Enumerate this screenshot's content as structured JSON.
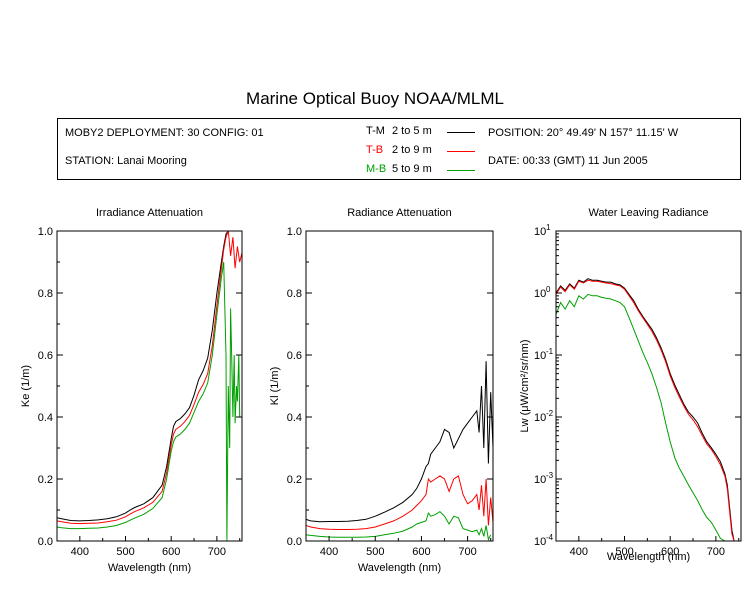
{
  "header": {
    "title": "Marine Optical Buoy NOAA/MLML",
    "deployment": "MOBY2 DEPLOYMENT: 30 CONFIG: 01",
    "station": "STATION: Lanai Mooring",
    "position": "POSITION: 20° 49.49' N   157° 11.15' W",
    "date": "DATE: 00:33 (GMT) 11 Jun 2005"
  },
  "legend": [
    {
      "code": "T-M",
      "range": "2 to 5  m",
      "color": "#000000"
    },
    {
      "code": "T-B",
      "range": "2 to 9  m",
      "color": "#ff0000"
    },
    {
      "code": "M-B",
      "range": "5 to 9  m",
      "color": "#00a000"
    }
  ],
  "chart_data": [
    {
      "type": "line",
      "title": "Irradiance Attenuation",
      "xlabel": "Wavelength (nm)",
      "ylabel": "Ke  (1/m)",
      "xlim": [
        350,
        755
      ],
      "ylim": [
        0,
        1.0
      ],
      "xticks": [
        400,
        500,
        600,
        700
      ],
      "yticks": [
        "0.0",
        "0.2",
        "0.4",
        "0.6",
        "0.8",
        "1.0"
      ],
      "grid": false,
      "series": [
        {
          "name": "T-M",
          "color": "#000000",
          "x": [
            350,
            360,
            380,
            400,
            420,
            440,
            460,
            480,
            500,
            510,
            520,
            540,
            560,
            580,
            590,
            600,
            605,
            610,
            620,
            630,
            640,
            650,
            660,
            670,
            680,
            690,
            700,
            710,
            715,
            720,
            725,
            730,
            735,
            740,
            745,
            750,
            755
          ],
          "y": [
            0.075,
            0.072,
            0.066,
            0.065,
            0.066,
            0.068,
            0.072,
            0.078,
            0.09,
            0.1,
            0.108,
            0.12,
            0.14,
            0.18,
            0.24,
            0.33,
            0.37,
            0.385,
            0.395,
            0.41,
            0.43,
            0.47,
            0.52,
            0.55,
            0.59,
            0.68,
            0.8,
            0.9,
            0.95,
            0.99,
            1.0,
            1.0,
            1.0,
            1.0,
            1.0,
            1.0,
            1.0
          ]
        },
        {
          "name": "T-B",
          "color": "#ff0000",
          "x": [
            350,
            360,
            380,
            400,
            420,
            440,
            460,
            480,
            500,
            510,
            520,
            540,
            560,
            580,
            590,
            600,
            605,
            610,
            620,
            630,
            640,
            650,
            660,
            670,
            680,
            690,
            700,
            710,
            715,
            720,
            725,
            730,
            735,
            740,
            745,
            750,
            755
          ],
          "y": [
            0.065,
            0.062,
            0.057,
            0.056,
            0.057,
            0.058,
            0.062,
            0.067,
            0.078,
            0.087,
            0.095,
            0.107,
            0.125,
            0.16,
            0.22,
            0.31,
            0.345,
            0.36,
            0.37,
            0.385,
            0.405,
            0.44,
            0.48,
            0.505,
            0.54,
            0.63,
            0.76,
            0.88,
            0.94,
            0.98,
            1.0,
            0.92,
            0.98,
            0.88,
            0.95,
            0.9,
            0.93
          ]
        },
        {
          "name": "M-B",
          "color": "#00a000",
          "x": [
            350,
            360,
            380,
            400,
            420,
            440,
            460,
            480,
            500,
            510,
            520,
            540,
            560,
            580,
            590,
            600,
            605,
            610,
            620,
            630,
            640,
            650,
            660,
            670,
            680,
            690,
            700,
            710,
            715,
            720,
            722,
            725,
            728,
            730,
            733,
            735,
            738,
            740,
            743,
            745,
            748,
            750
          ],
          "y": [
            0.045,
            0.043,
            0.04,
            0.04,
            0.041,
            0.042,
            0.045,
            0.05,
            0.06,
            0.067,
            0.074,
            0.086,
            0.105,
            0.14,
            0.2,
            0.29,
            0.32,
            0.335,
            0.345,
            0.36,
            0.38,
            0.415,
            0.45,
            0.475,
            0.51,
            0.6,
            0.73,
            0.85,
            0.9,
            0.6,
            0.0,
            0.5,
            0.3,
            0.75,
            0.55,
            0.4,
            0.6,
            0.38,
            0.5,
            0.45,
            0.6,
            0.4
          ]
        }
      ]
    },
    {
      "type": "line",
      "title": "Radiance Attenuation",
      "xlabel": "Wavelength (nm)",
      "ylabel": "Kl  (1/m)",
      "xlim": [
        350,
        755
      ],
      "ylim": [
        0,
        1.0
      ],
      "xticks": [
        400,
        500,
        600,
        700
      ],
      "yticks": [
        "0.0",
        "0.2",
        "0.4",
        "0.6",
        "0.8",
        "1.0"
      ],
      "grid": false,
      "series": [
        {
          "name": "T-M",
          "color": "#000000",
          "x": [
            350,
            360,
            380,
            400,
            420,
            440,
            460,
            480,
            500,
            520,
            540,
            560,
            580,
            590,
            600,
            605,
            610,
            615,
            620,
            630,
            640,
            650,
            660,
            670,
            680,
            690,
            700,
            710,
            720,
            725,
            730,
            735,
            740,
            745,
            750,
            755
          ],
          "y": [
            0.07,
            0.065,
            0.062,
            0.063,
            0.063,
            0.064,
            0.066,
            0.07,
            0.08,
            0.093,
            0.107,
            0.125,
            0.15,
            0.17,
            0.2,
            0.22,
            0.24,
            0.25,
            0.28,
            0.3,
            0.32,
            0.36,
            0.35,
            0.3,
            0.33,
            0.36,
            0.38,
            0.4,
            0.42,
            0.35,
            0.5,
            0.3,
            0.58,
            0.25,
            0.48,
            0.3
          ]
        },
        {
          "name": "T-B",
          "color": "#ff0000",
          "x": [
            350,
            360,
            380,
            400,
            420,
            440,
            460,
            480,
            500,
            520,
            540,
            560,
            580,
            590,
            600,
            610,
            615,
            620,
            630,
            640,
            650,
            660,
            670,
            680,
            690,
            700,
            710,
            720,
            725,
            730,
            735,
            740,
            745,
            750,
            755
          ],
          "y": [
            0.05,
            0.045,
            0.04,
            0.038,
            0.037,
            0.037,
            0.038,
            0.04,
            0.045,
            0.055,
            0.065,
            0.08,
            0.1,
            0.115,
            0.13,
            0.15,
            0.2,
            0.19,
            0.2,
            0.21,
            0.2,
            0.16,
            0.2,
            0.21,
            0.15,
            0.12,
            0.13,
            0.15,
            0.1,
            0.18,
            0.08,
            0.2,
            0.05,
            0.14,
            0.06
          ]
        },
        {
          "name": "M-B",
          "color": "#00a000",
          "x": [
            350,
            360,
            380,
            400,
            420,
            440,
            460,
            480,
            500,
            520,
            540,
            560,
            580,
            590,
            600,
            610,
            615,
            620,
            630,
            640,
            650,
            660,
            670,
            680,
            690,
            700,
            710,
            720,
            725,
            730,
            735,
            740,
            745,
            750
          ],
          "y": [
            0.02,
            0.018,
            0.015,
            0.013,
            0.012,
            0.012,
            0.012,
            0.013,
            0.015,
            0.02,
            0.025,
            0.032,
            0.045,
            0.055,
            0.06,
            0.065,
            0.09,
            0.08,
            0.085,
            0.095,
            0.08,
            0.055,
            0.08,
            0.075,
            0.04,
            0.035,
            0.03,
            0.035,
            0.02,
            0.04,
            0.015,
            0.05,
            0.005,
            0.02
          ]
        }
      ]
    },
    {
      "type": "line",
      "title": "Water Leaving Radiance",
      "xlabel": "Wavelength (nm)",
      "ylabel": "Lw  (μW/cm²/sr/nm)",
      "xscale": "log-y",
      "xlim": [
        350,
        755
      ],
      "ylim_log10": [
        -4,
        1
      ],
      "xticks": [
        400,
        500,
        600,
        700
      ],
      "yticks": [
        {
          "base": "10",
          "exp": "1"
        },
        {
          "base": "10",
          "exp": "0"
        },
        {
          "base": "10",
          "exp": "-1"
        },
        {
          "base": "10",
          "exp": "-2"
        },
        {
          "base": "10",
          "exp": "-3"
        },
        {
          "base": "10",
          "exp": "-4"
        }
      ],
      "grid": false,
      "series": [
        {
          "name": "T-M",
          "color": "#000000",
          "x": [
            350,
            360,
            370,
            380,
            390,
            400,
            410,
            420,
            430,
            440,
            450,
            460,
            470,
            480,
            490,
            500,
            510,
            520,
            530,
            540,
            550,
            560,
            570,
            580,
            590,
            600,
            610,
            620,
            630,
            640,
            650,
            660,
            670,
            680,
            690,
            700,
            710,
            720,
            725,
            730,
            735,
            740,
            745,
            750,
            755
          ],
          "y": [
            1.0,
            1.3,
            1.1,
            1.4,
            1.2,
            1.6,
            1.5,
            1.7,
            1.6,
            1.6,
            1.55,
            1.5,
            1.5,
            1.4,
            1.35,
            1.2,
            0.95,
            0.75,
            0.55,
            0.42,
            0.33,
            0.26,
            0.19,
            0.13,
            0.085,
            0.05,
            0.033,
            0.023,
            0.016,
            0.012,
            0.01,
            0.008,
            0.0055,
            0.004,
            0.0032,
            0.0025,
            0.0019,
            0.0012,
            0.0008,
            0.00035,
            0.00015,
            0.0001,
            0.0001,
            0.0001,
            0.0001
          ]
        },
        {
          "name": "T-B",
          "color": "#ff0000",
          "x": [
            350,
            360,
            370,
            380,
            390,
            400,
            410,
            420,
            430,
            440,
            450,
            460,
            470,
            480,
            490,
            500,
            510,
            520,
            530,
            540,
            550,
            560,
            570,
            580,
            590,
            600,
            610,
            620,
            630,
            640,
            650,
            660,
            670,
            680,
            690,
            700,
            710,
            720,
            725,
            730,
            735,
            740,
            745,
            750,
            755
          ],
          "y": [
            0.95,
            1.25,
            1.05,
            1.35,
            1.15,
            1.55,
            1.45,
            1.6,
            1.55,
            1.55,
            1.5,
            1.45,
            1.42,
            1.35,
            1.3,
            1.15,
            0.9,
            0.7,
            0.52,
            0.4,
            0.31,
            0.24,
            0.175,
            0.12,
            0.078,
            0.046,
            0.03,
            0.021,
            0.015,
            0.011,
            0.009,
            0.007,
            0.005,
            0.0037,
            0.003,
            0.0023,
            0.0017,
            0.0011,
            0.0007,
            0.0003,
            0.00013,
            0.0001,
            0.0001,
            0.0001,
            0.0001
          ]
        },
        {
          "name": "M-B",
          "color": "#00a000",
          "x": [
            350,
            360,
            370,
            380,
            390,
            400,
            410,
            420,
            430,
            440,
            450,
            460,
            470,
            480,
            490,
            500,
            510,
            520,
            530,
            540,
            550,
            560,
            570,
            580,
            590,
            600,
            610,
            620,
            630,
            640,
            650,
            660,
            670,
            680,
            690,
            700,
            710,
            720,
            725,
            730,
            735
          ],
          "y": [
            0.45,
            0.7,
            0.55,
            0.75,
            0.6,
            0.9,
            0.8,
            0.95,
            0.9,
            0.9,
            0.85,
            0.82,
            0.8,
            0.75,
            0.7,
            0.6,
            0.4,
            0.26,
            0.17,
            0.11,
            0.075,
            0.05,
            0.03,
            0.017,
            0.008,
            0.004,
            0.0022,
            0.0015,
            0.0011,
            0.0008,
            0.0006,
            0.00045,
            0.00032,
            0.00024,
            0.0002,
            0.00015,
            0.00011,
            0.0001,
            0.0001,
            0.0001,
            0.0001
          ]
        }
      ]
    }
  ]
}
